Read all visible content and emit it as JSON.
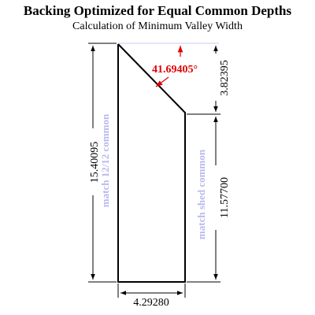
{
  "header": {
    "title": "Backing Optimized for Equal Common Depths",
    "subtitle": "Calculation of Minimum Valley Width"
  },
  "dimensions": {
    "left_height": "15.40095",
    "right_height": "11.57700",
    "drop": "3.82395",
    "width": "4.29280",
    "angle": "41.69405°"
  },
  "side_labels": {
    "left": "match 12/12 common",
    "right": "match shed common"
  },
  "colors": {
    "outline": "#000000",
    "angle": "#e00000",
    "side_label": "#b8b8f0",
    "guide": "#c8c8f0"
  }
}
